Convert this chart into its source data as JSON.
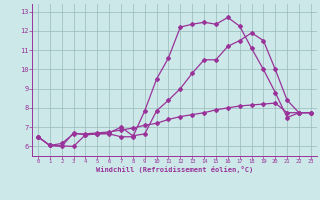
{
  "xlabel": "Windchill (Refroidissement éolien,°C)",
  "bg_color": "#cce8e8",
  "line_color": "#993399",
  "grid_color": "#99bbbb",
  "xlim": [
    -0.5,
    23.5
  ],
  "ylim": [
    5.5,
    13.4
  ],
  "xticks": [
    0,
    1,
    2,
    3,
    4,
    5,
    6,
    7,
    8,
    9,
    10,
    11,
    12,
    13,
    14,
    15,
    16,
    17,
    18,
    19,
    20,
    21,
    22,
    23
  ],
  "yticks": [
    6,
    7,
    8,
    9,
    10,
    11,
    12,
    13
  ],
  "line1_x": [
    0,
    1,
    2,
    3,
    4,
    5,
    6,
    7,
    8,
    9,
    10,
    11,
    12,
    13,
    14,
    15,
    16,
    17,
    18,
    19,
    20,
    21,
    22,
    23
  ],
  "line1_y": [
    6.5,
    6.05,
    6.0,
    6.7,
    6.6,
    6.65,
    6.65,
    6.5,
    6.5,
    7.85,
    9.5,
    10.6,
    12.2,
    12.35,
    12.45,
    12.35,
    12.7,
    12.25,
    11.1,
    10.0,
    8.8,
    7.5,
    7.75,
    7.75
  ],
  "line2_x": [
    0,
    1,
    3,
    4,
    5,
    6,
    7,
    8,
    9,
    10,
    11,
    12,
    13,
    14,
    15,
    16,
    17,
    18,
    19,
    20,
    21,
    22,
    23
  ],
  "line2_y": [
    6.5,
    6.05,
    6.0,
    6.6,
    6.65,
    6.7,
    7.0,
    6.55,
    6.65,
    7.85,
    8.4,
    9.0,
    9.8,
    10.5,
    10.5,
    11.2,
    11.5,
    11.9,
    11.5,
    10.0,
    8.4,
    7.75,
    7.75
  ],
  "line3_x": [
    0,
    1,
    2,
    3,
    4,
    5,
    6,
    7,
    8,
    9,
    10,
    11,
    12,
    13,
    14,
    15,
    16,
    17,
    18,
    19,
    20,
    21,
    22,
    23
  ],
  "line3_y": [
    6.5,
    6.05,
    6.15,
    6.65,
    6.65,
    6.7,
    6.75,
    6.85,
    6.95,
    7.1,
    7.2,
    7.4,
    7.55,
    7.65,
    7.75,
    7.9,
    8.0,
    8.1,
    8.15,
    8.2,
    8.25,
    7.75,
    7.75,
    7.75
  ]
}
